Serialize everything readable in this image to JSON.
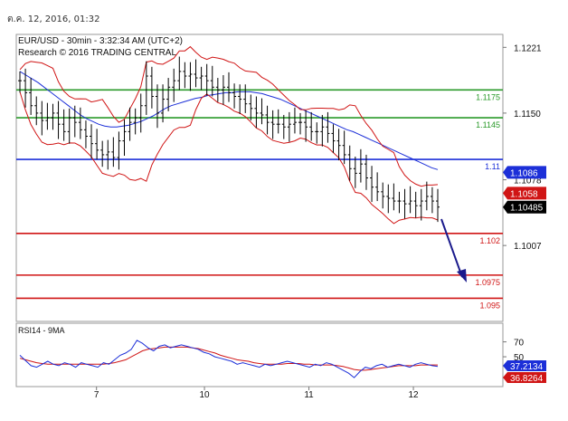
{
  "timestamp": "ต.ค. 12, 2016, 01:32",
  "chart_data": [
    {
      "type": "line",
      "instrument_header": "EUR/USD - 30min - 3:32:34 AM (UTC+2)",
      "credit": "Research © 2016 TRADING CENTRAL",
      "ylim": [
        1.0925,
        1.1235
      ],
      "y_ticks": [
        1.1221,
        1.115,
        1.1078,
        1.1007
      ],
      "y_tick_labels": [
        "1.1221",
        "1.1150",
        "1.1078",
        "1.1007"
      ],
      "x_tick_labels": [
        "7",
        "10",
        "11",
        "12"
      ],
      "x_tick_positions": [
        22,
        53,
        83,
        113
      ],
      "levels": [
        {
          "value": 1.1175,
          "label": "1.1175",
          "color": "#2a9a2a"
        },
        {
          "value": 1.1145,
          "label": "1.1145",
          "color": "#2a9a2a"
        },
        {
          "value": 1.11,
          "label": "1.11",
          "color": "#1c2fd8"
        },
        {
          "value": 1.102,
          "label": "1.102",
          "color": "#d01515"
        },
        {
          "value": 1.0975,
          "label": "1.0975",
          "color": "#d01515"
        },
        {
          "value": 1.095,
          "label": "1.095",
          "color": "#d01515"
        }
      ],
      "price_tags": [
        {
          "value": 1.1086,
          "label": "1.1086",
          "color": "#1c2fd8"
        },
        {
          "value": 1.1058,
          "label": "1.1058",
          "color": "#d01515"
        },
        {
          "value": 1.10485,
          "label": "1.10485",
          "color": "#000000"
        }
      ],
      "close": [
        1.1185,
        1.1172,
        1.1158,
        1.115,
        1.1142,
        1.1145,
        1.115,
        1.1138,
        1.113,
        1.1145,
        1.114,
        1.1132,
        1.1125,
        1.1117,
        1.111,
        1.1105,
        1.1108,
        1.1102,
        1.112,
        1.113,
        1.114,
        1.1145,
        1.1158,
        1.119,
        1.1168,
        1.115,
        1.1165,
        1.1178,
        1.1185,
        1.1195,
        1.119,
        1.1192,
        1.1188,
        1.119,
        1.1185,
        1.1178,
        1.1175,
        1.1178,
        1.1172,
        1.1168,
        1.1165,
        1.116,
        1.1155,
        1.115,
        1.1148,
        1.114,
        1.1138,
        1.1138,
        1.1135,
        1.1138,
        1.114,
        1.114,
        1.1135,
        1.113,
        1.113,
        1.1135,
        1.1128,
        1.112,
        1.1115,
        1.1105,
        1.109,
        1.1085,
        1.1095,
        1.108,
        1.107,
        1.1065,
        1.106,
        1.1058,
        1.1055,
        1.1055,
        1.1052,
        1.1055,
        1.105,
        1.1055,
        1.106,
        1.1055,
        1.10485
      ],
      "ma_blue": [
        1.1195,
        1.1191,
        1.1187,
        1.1183,
        1.1178,
        1.1173,
        1.1168,
        1.1163,
        1.1158,
        1.1153,
        1.1148,
        1.1144,
        1.1141,
        1.1138,
        1.1136,
        1.1135,
        1.1135,
        1.1136,
        1.1137,
        1.1139,
        1.1141,
        1.1144,
        1.1147,
        1.1151,
        1.1155,
        1.1158,
        1.116,
        1.1162,
        1.1164,
        1.1166,
        1.1167,
        1.1169,
        1.117,
        1.1171,
        1.1172,
        1.1172,
        1.1173,
        1.1173,
        1.1173,
        1.1172,
        1.1171,
        1.1169,
        1.1167,
        1.1165,
        1.1162,
        1.1159,
        1.1156,
        1.1153,
        1.115,
        1.1147,
        1.1144,
        1.1141,
        1.1138,
        1.1135,
        1.1132,
        1.113,
        1.1127,
        1.1124,
        1.1121,
        1.1118,
        1.1115,
        1.1112,
        1.1109,
        1.1106,
        1.1103,
        1.11,
        1.1097,
        1.1094,
        1.1091,
        1.1089
      ],
      "rsi_label": "RSI14 - 9MA",
      "rsi_ylim": [
        10,
        95
      ],
      "rsi_ticks": [
        70,
        50
      ],
      "rsi": [
        52,
        45,
        38,
        36,
        40,
        44,
        40,
        38,
        42,
        40,
        36,
        42,
        40,
        38,
        36,
        42,
        40,
        46,
        52,
        55,
        60,
        72,
        68,
        62,
        58,
        64,
        66,
        62,
        64,
        66,
        64,
        62,
        60,
        56,
        54,
        50,
        48,
        46,
        44,
        40,
        42,
        40,
        38,
        36,
        40,
        38,
        40,
        42,
        44,
        42,
        40,
        38,
        36,
        40,
        38,
        42,
        40,
        36,
        32,
        28,
        22,
        30,
        36,
        34,
        38,
        40,
        36,
        38,
        40,
        38,
        36,
        40,
        42,
        40,
        38,
        37
      ],
      "rsi_ma": [
        48,
        46,
        44,
        42,
        41,
        40,
        40,
        40,
        40,
        40,
        40,
        40,
        40,
        40,
        40,
        40,
        41,
        42,
        44,
        46,
        50,
        54,
        58,
        60,
        61,
        62,
        63,
        63,
        63,
        63,
        63,
        62,
        61,
        59,
        57,
        55,
        52,
        50,
        48,
        46,
        45,
        44,
        42,
        41,
        40,
        40,
        40,
        40,
        41,
        41,
        41,
        40,
        40,
        39,
        39,
        39,
        39,
        38,
        37,
        35,
        33,
        32,
        32,
        33,
        34,
        35,
        36,
        37,
        38,
        38,
        38,
        38,
        39,
        39,
        39,
        39
      ],
      "rsi_tags": [
        {
          "value": 37.2134,
          "label": "37.2134",
          "color": "#1c2fd8"
        },
        {
          "value": 36.8264,
          "label": "36.8264",
          "color": "#d01515"
        }
      ]
    }
  ]
}
